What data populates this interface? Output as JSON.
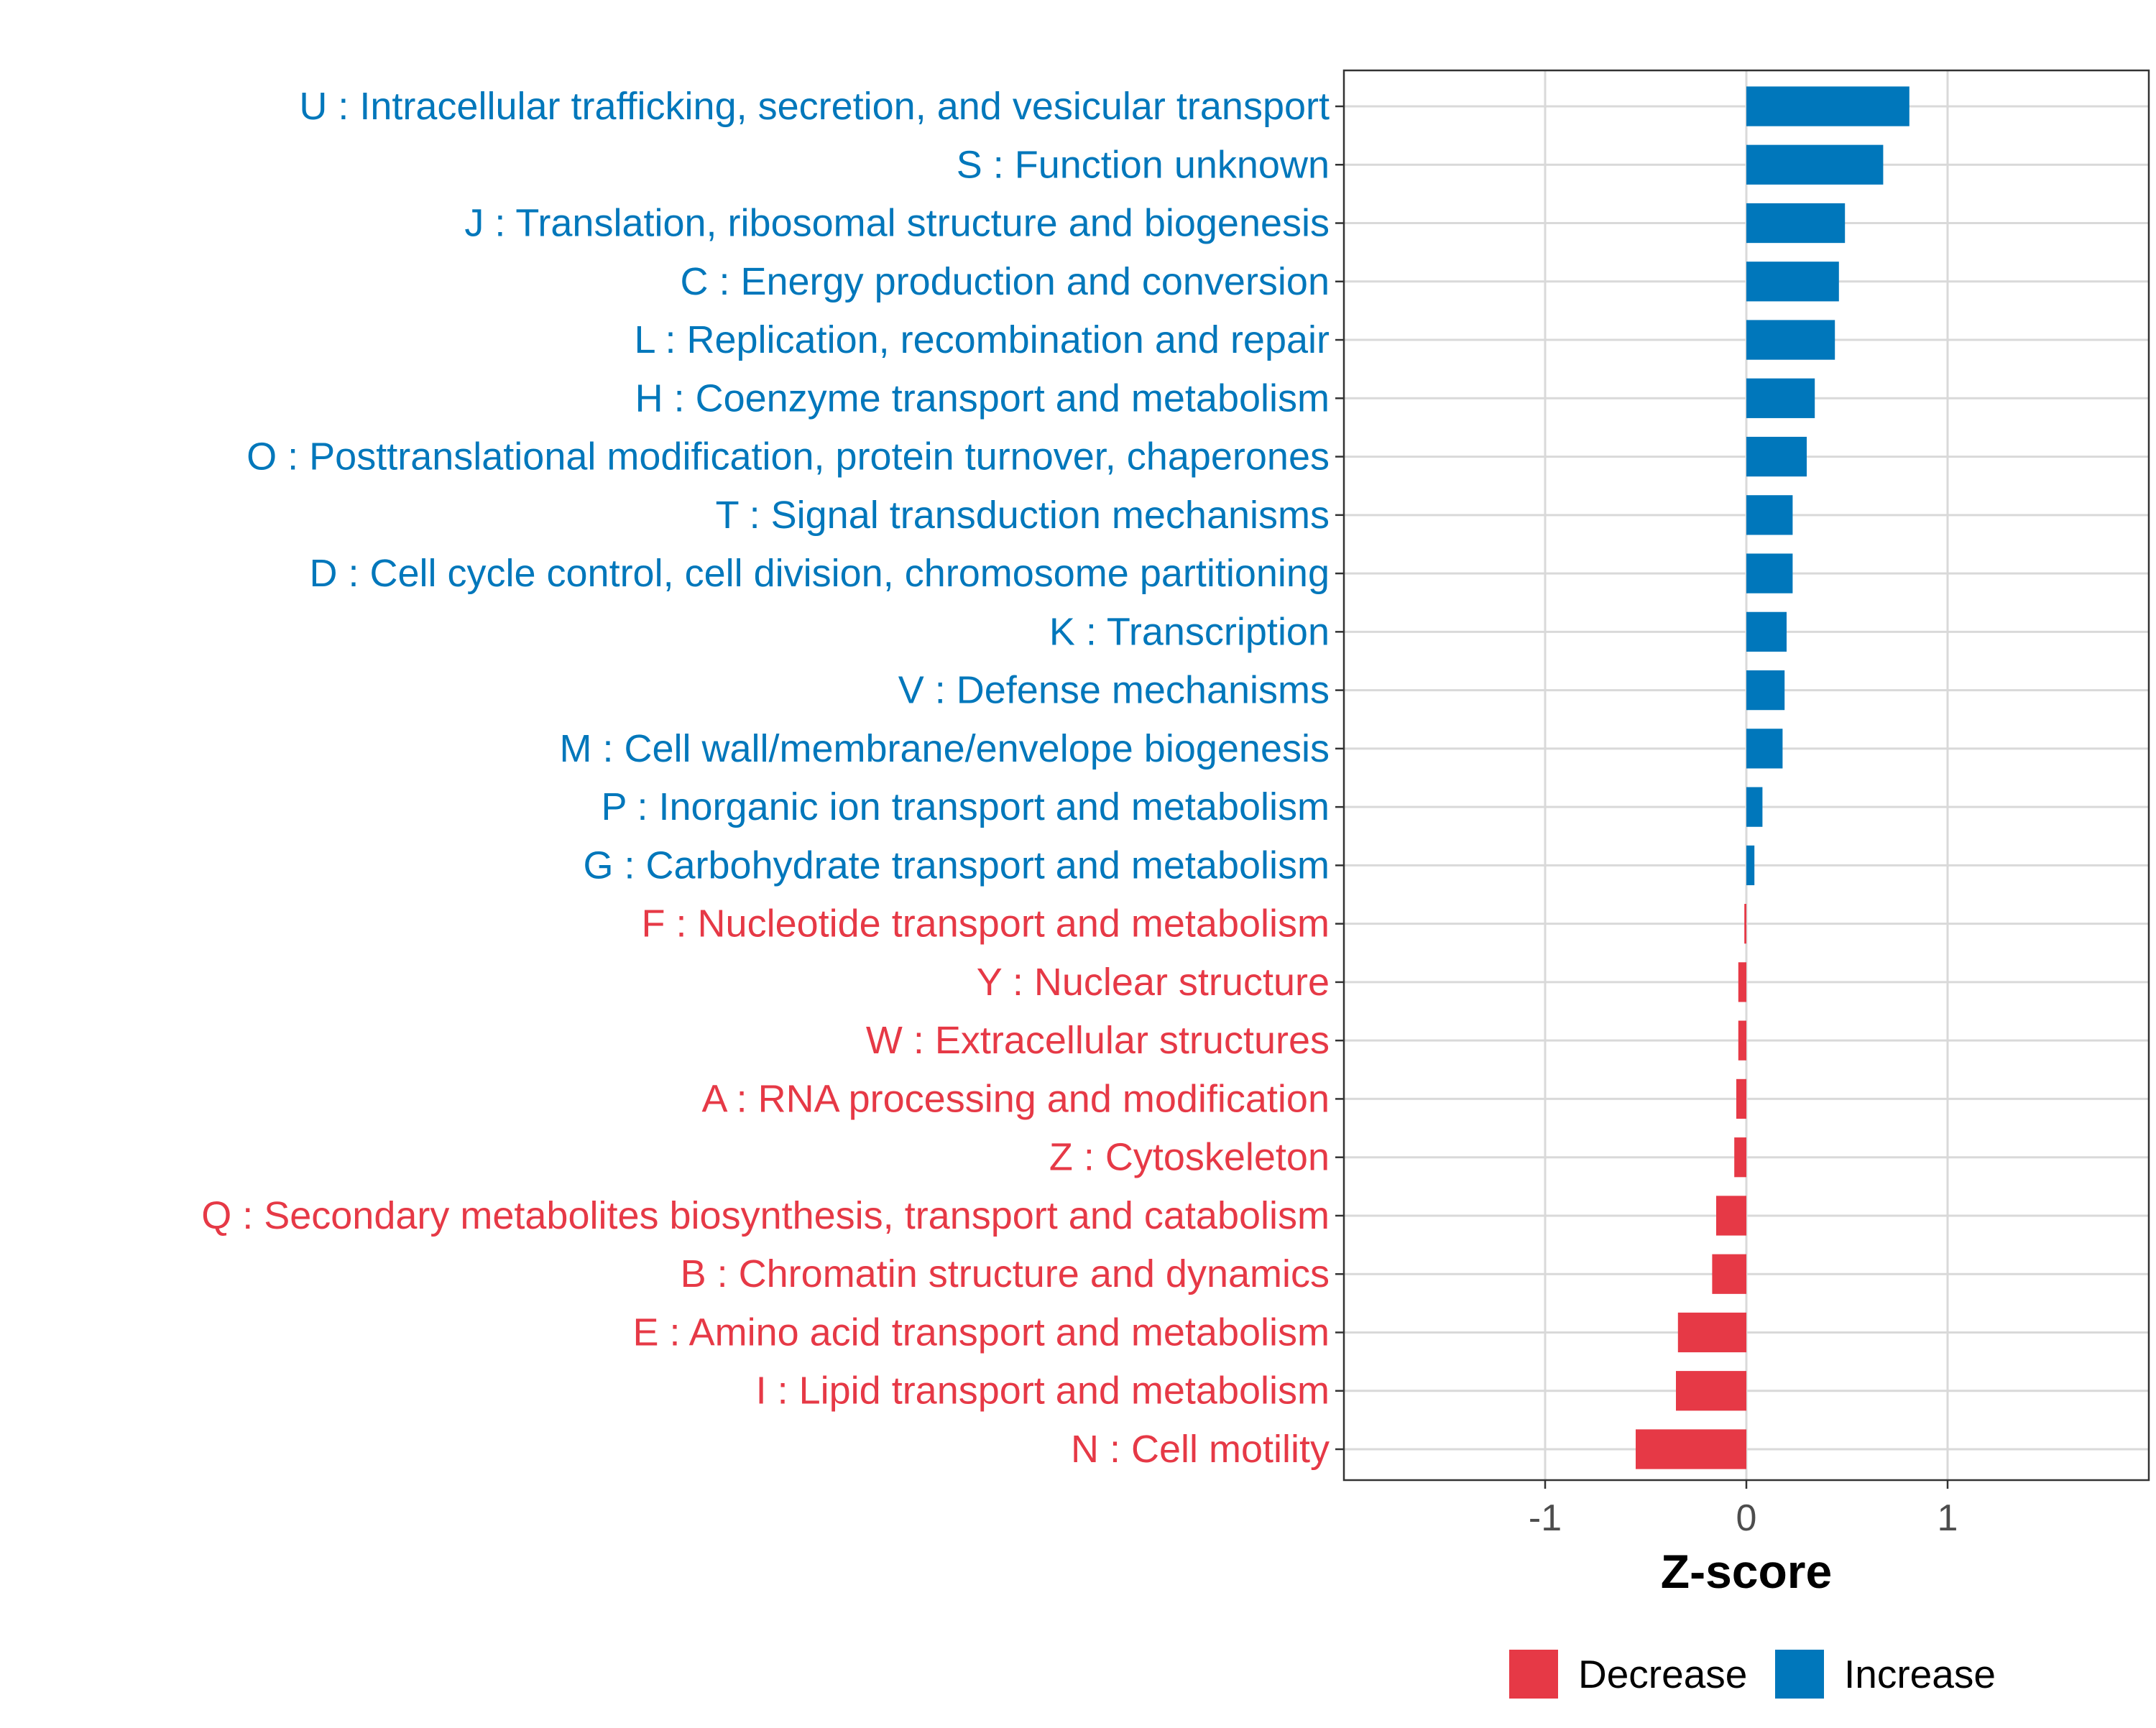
{
  "colors": {
    "increase": "#0077BB",
    "decrease": "#E63946",
    "grid": "#d9d9d9",
    "panel_border": "#333333"
  },
  "chart_data": {
    "type": "bar",
    "orientation": "horizontal",
    "title": "",
    "xlabel": "Z-score",
    "ylabel": "",
    "xlim": [
      -2,
      2
    ],
    "xticks": [
      -1,
      0,
      1
    ],
    "xtick_labels": [
      "-1",
      "0",
      "1"
    ],
    "grid": true,
    "legend": {
      "position": "bottom",
      "entries": [
        {
          "label": "Decrease",
          "color_key": "decrease"
        },
        {
          "label": "Increase",
          "color_key": "increase"
        }
      ]
    },
    "categories": [
      "U : Intracellular trafficking, secretion, and vesicular transport",
      "S : Function unknown",
      "J : Translation, ribosomal structure and biogenesis",
      "C : Energy production and conversion",
      "L : Replication, recombination and repair",
      "H : Coenzyme transport and metabolism",
      "O : Posttranslational modification, protein turnover, chaperones",
      "T : Signal transduction mechanisms",
      "D : Cell cycle control, cell division, chromosome partitioning",
      "K : Transcription",
      "V : Defense mechanisms",
      "M : Cell wall/membrane/envelope biogenesis",
      "P : Inorganic ion transport and metabolism",
      "G : Carbohydrate transport and metabolism",
      "F : Nucleotide transport and metabolism",
      "Y : Nuclear structure",
      "W : Extracellular structures",
      "A : RNA processing and modification",
      "Z : Cytoskeleton",
      "Q : Secondary metabolites biosynthesis, transport and catabolism",
      "B : Chromatin structure and dynamics",
      "E : Amino acid transport and metabolism",
      "I : Lipid transport and metabolism",
      "N : Cell motility"
    ],
    "values": [
      0.81,
      0.68,
      0.49,
      0.46,
      0.44,
      0.34,
      0.3,
      0.23,
      0.23,
      0.2,
      0.19,
      0.18,
      0.08,
      0.04,
      -0.01,
      -0.04,
      -0.04,
      -0.05,
      -0.06,
      -0.15,
      -0.17,
      -0.34,
      -0.35,
      -0.55
    ],
    "groups": [
      "Increase",
      "Increase",
      "Increase",
      "Increase",
      "Increase",
      "Increase",
      "Increase",
      "Increase",
      "Increase",
      "Increase",
      "Increase",
      "Increase",
      "Increase",
      "Increase",
      "Decrease",
      "Decrease",
      "Decrease",
      "Decrease",
      "Decrease",
      "Decrease",
      "Decrease",
      "Decrease",
      "Decrease",
      "Decrease"
    ]
  }
}
